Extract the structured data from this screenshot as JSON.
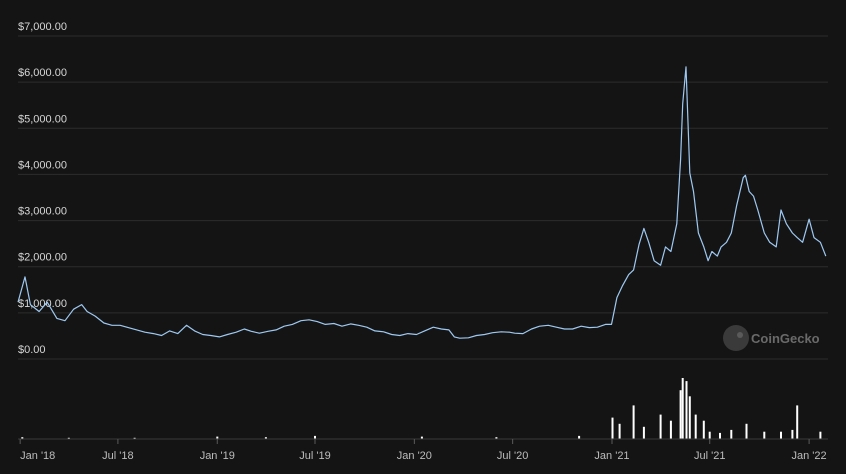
{
  "chart_data": {
    "type": "line",
    "title": "",
    "xlabel": "",
    "ylabel": "",
    "y_ticks": [
      {
        "value": 0,
        "label": "$0.00"
      },
      {
        "value": 1000,
        "label": "$1,000.00"
      },
      {
        "value": 2000,
        "label": "$2,000.00"
      },
      {
        "value": 3000,
        "label": "$3,000.00"
      },
      {
        "value": 4000,
        "label": "$4,000.00"
      },
      {
        "value": 5000,
        "label": "$5,000.00"
      },
      {
        "value": 6000,
        "label": "$6,000.00"
      },
      {
        "value": 7000,
        "label": "$7,000.00"
      }
    ],
    "ylim": [
      0,
      7000
    ],
    "x_ticks": [
      {
        "date": "2018-01-01",
        "label": "Jan '18"
      },
      {
        "date": "2018-07-01",
        "label": "Jul '18"
      },
      {
        "date": "2019-01-01",
        "label": "Jan '19"
      },
      {
        "date": "2019-07-01",
        "label": "Jul '19"
      },
      {
        "date": "2020-01-01",
        "label": "Jan '20"
      },
      {
        "date": "2020-07-01",
        "label": "Jul '20"
      },
      {
        "date": "2021-01-01",
        "label": "Jan '21"
      },
      {
        "date": "2021-07-01",
        "label": "Jul '21"
      },
      {
        "date": "2022-01-01",
        "label": "Jan '22"
      }
    ],
    "xlim": [
      "2017-12-28",
      "2022-02-05"
    ],
    "grid": true,
    "colors": {
      "price_line": "#9ec9f2",
      "volume_bars": "#ffffff",
      "grid": "#2c2c2c"
    },
    "series": [
      {
        "kind": "price",
        "x": [
          "2017-12-28",
          "2018-01-10",
          "2018-01-20",
          "2018-02-05",
          "2018-02-20",
          "2018-03-10",
          "2018-03-25",
          "2018-04-10",
          "2018-04-25",
          "2018-05-05",
          "2018-05-20",
          "2018-06-05",
          "2018-06-20",
          "2018-07-05",
          "2018-07-20",
          "2018-08-05",
          "2018-08-20",
          "2018-09-05",
          "2018-09-20",
          "2018-10-05",
          "2018-10-20",
          "2018-11-05",
          "2018-11-20",
          "2018-12-05",
          "2018-12-20",
          "2019-01-05",
          "2019-01-20",
          "2019-02-05",
          "2019-02-20",
          "2019-03-05",
          "2019-03-20",
          "2019-04-05",
          "2019-04-20",
          "2019-05-05",
          "2019-05-20",
          "2019-06-05",
          "2019-06-20",
          "2019-07-05",
          "2019-07-20",
          "2019-08-05",
          "2019-08-20",
          "2019-09-05",
          "2019-09-20",
          "2019-10-05",
          "2019-10-20",
          "2019-11-05",
          "2019-11-20",
          "2019-12-05",
          "2019-12-20",
          "2020-01-05",
          "2020-01-20",
          "2020-02-05",
          "2020-02-20",
          "2020-03-05",
          "2020-03-15",
          "2020-03-25",
          "2020-04-10",
          "2020-04-25",
          "2020-05-10",
          "2020-05-25",
          "2020-06-10",
          "2020-06-25",
          "2020-07-05",
          "2020-07-20",
          "2020-08-05",
          "2020-08-20",
          "2020-09-05",
          "2020-09-20",
          "2020-10-05",
          "2020-10-20",
          "2020-11-05",
          "2020-11-20",
          "2020-12-05",
          "2020-12-20",
          "2020-12-31",
          "2021-01-10",
          "2021-01-20",
          "2021-02-01",
          "2021-02-10",
          "2021-02-20",
          "2021-03-01",
          "2021-03-10",
          "2021-03-20",
          "2021-04-01",
          "2021-04-10",
          "2021-04-20",
          "2021-05-01",
          "2021-05-08",
          "2021-05-12",
          "2021-05-18",
          "2021-05-25",
          "2021-06-01",
          "2021-06-10",
          "2021-06-20",
          "2021-06-28",
          "2021-07-05",
          "2021-07-15",
          "2021-07-22",
          "2021-08-01",
          "2021-08-10",
          "2021-08-20",
          "2021-09-01",
          "2021-09-05",
          "2021-09-12",
          "2021-09-20",
          "2021-09-28",
          "2021-10-10",
          "2021-10-20",
          "2021-11-01",
          "2021-11-10",
          "2021-11-20",
          "2021-12-01",
          "2021-12-10",
          "2021-12-20",
          "2022-01-01",
          "2022-01-10",
          "2022-01-22",
          "2022-02-01"
        ],
        "values": [
          1100,
          1650,
          1050,
          900,
          1100,
          750,
          700,
          950,
          1050,
          900,
          800,
          650,
          600,
          600,
          550,
          500,
          450,
          420,
          380,
          480,
          420,
          600,
          480,
          400,
          380,
          350,
          400,
          450,
          520,
          470,
          430,
          470,
          500,
          580,
          620,
          700,
          720,
          680,
          620,
          640,
          580,
          630,
          600,
          560,
          480,
          460,
          400,
          380,
          420,
          400,
          480,
          560,
          520,
          500,
          350,
          320,
          330,
          380,
          400,
          440,
          460,
          450,
          430,
          420,
          520,
          580,
          600,
          560,
          520,
          520,
          580,
          550,
          560,
          620,
          620,
          1200,
          1450,
          1700,
          1800,
          2350,
          2700,
          2400,
          2000,
          1900,
          2300,
          2200,
          2800,
          4200,
          5400,
          6200,
          3900,
          3500,
          2600,
          2300,
          2000,
          2200,
          2100,
          2300,
          2400,
          2600,
          3200,
          3800,
          3850,
          3500,
          3400,
          3100,
          2600,
          2400,
          2300,
          3100,
          2800,
          2600,
          2500,
          2400,
          2900,
          2500,
          2400,
          2100
        ]
      },
      {
        "kind": "volume",
        "x": [
          "2018-01-05",
          "2018-04-01",
          "2018-08-01",
          "2019-01-01",
          "2019-04-01",
          "2019-07-01",
          "2020-01-15",
          "2020-06-01",
          "2020-11-01",
          "2021-01-02",
          "2021-01-15",
          "2021-02-10",
          "2021-03-01",
          "2021-04-01",
          "2021-04-20",
          "2021-05-08",
          "2021-05-12",
          "2021-05-19",
          "2021-05-25",
          "2021-06-05",
          "2021-06-20",
          "2021-07-01",
          "2021-07-20",
          "2021-08-10",
          "2021-09-07",
          "2021-10-10",
          "2021-11-10",
          "2021-12-01",
          "2021-12-10",
          "2022-01-22"
        ],
        "values": [
          0.03,
          0.02,
          0.02,
          0.04,
          0.03,
          0.05,
          0.04,
          0.03,
          0.05,
          0.35,
          0.25,
          0.55,
          0.2,
          0.4,
          0.3,
          0.8,
          1.0,
          0.95,
          0.7,
          0.4,
          0.3,
          0.12,
          0.1,
          0.15,
          0.25,
          0.12,
          0.12,
          0.15,
          0.55,
          0.12
        ]
      }
    ]
  },
  "watermark": {
    "text": "CoinGecko"
  }
}
